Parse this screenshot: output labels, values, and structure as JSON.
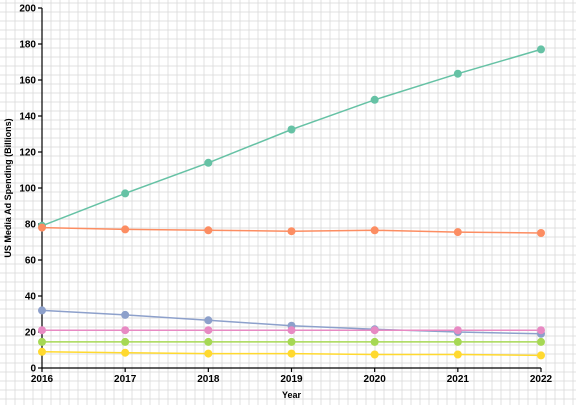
{
  "chart_data": {
    "type": "line",
    "title": "",
    "xlabel": "Year",
    "ylabel": "US Media Ad Spending (Billions)",
    "x": [
      2016,
      2017,
      2018,
      2019,
      2020,
      2021,
      2022
    ],
    "xlim": [
      2016,
      2022
    ],
    "ylim": [
      0,
      200
    ],
    "yticks": [
      0,
      20,
      40,
      60,
      80,
      100,
      120,
      140,
      160,
      180,
      200
    ],
    "grid": true,
    "legend": "none",
    "series": [
      {
        "color": "#66c2a5",
        "values": [
          79,
          97,
          114,
          132.5,
          149,
          163.5,
          177
        ]
      },
      {
        "color": "#fc8d62",
        "values": [
          78,
          77,
          76.5,
          76,
          76.5,
          75.5,
          75
        ]
      },
      {
        "color": "#8da0cb",
        "values": [
          32,
          29.5,
          26.5,
          23.5,
          21.5,
          20,
          19
        ]
      },
      {
        "color": "#e78ac3",
        "values": [
          21,
          21,
          21,
          21,
          21,
          21,
          21
        ]
      },
      {
        "color": "#a6d854",
        "values": [
          14.5,
          14.5,
          14.5,
          14.5,
          14.5,
          14.5,
          14.5
        ]
      },
      {
        "color": "#ffd92f",
        "values": [
          9,
          8.5,
          8,
          8,
          7.5,
          7.5,
          7
        ]
      }
    ]
  }
}
